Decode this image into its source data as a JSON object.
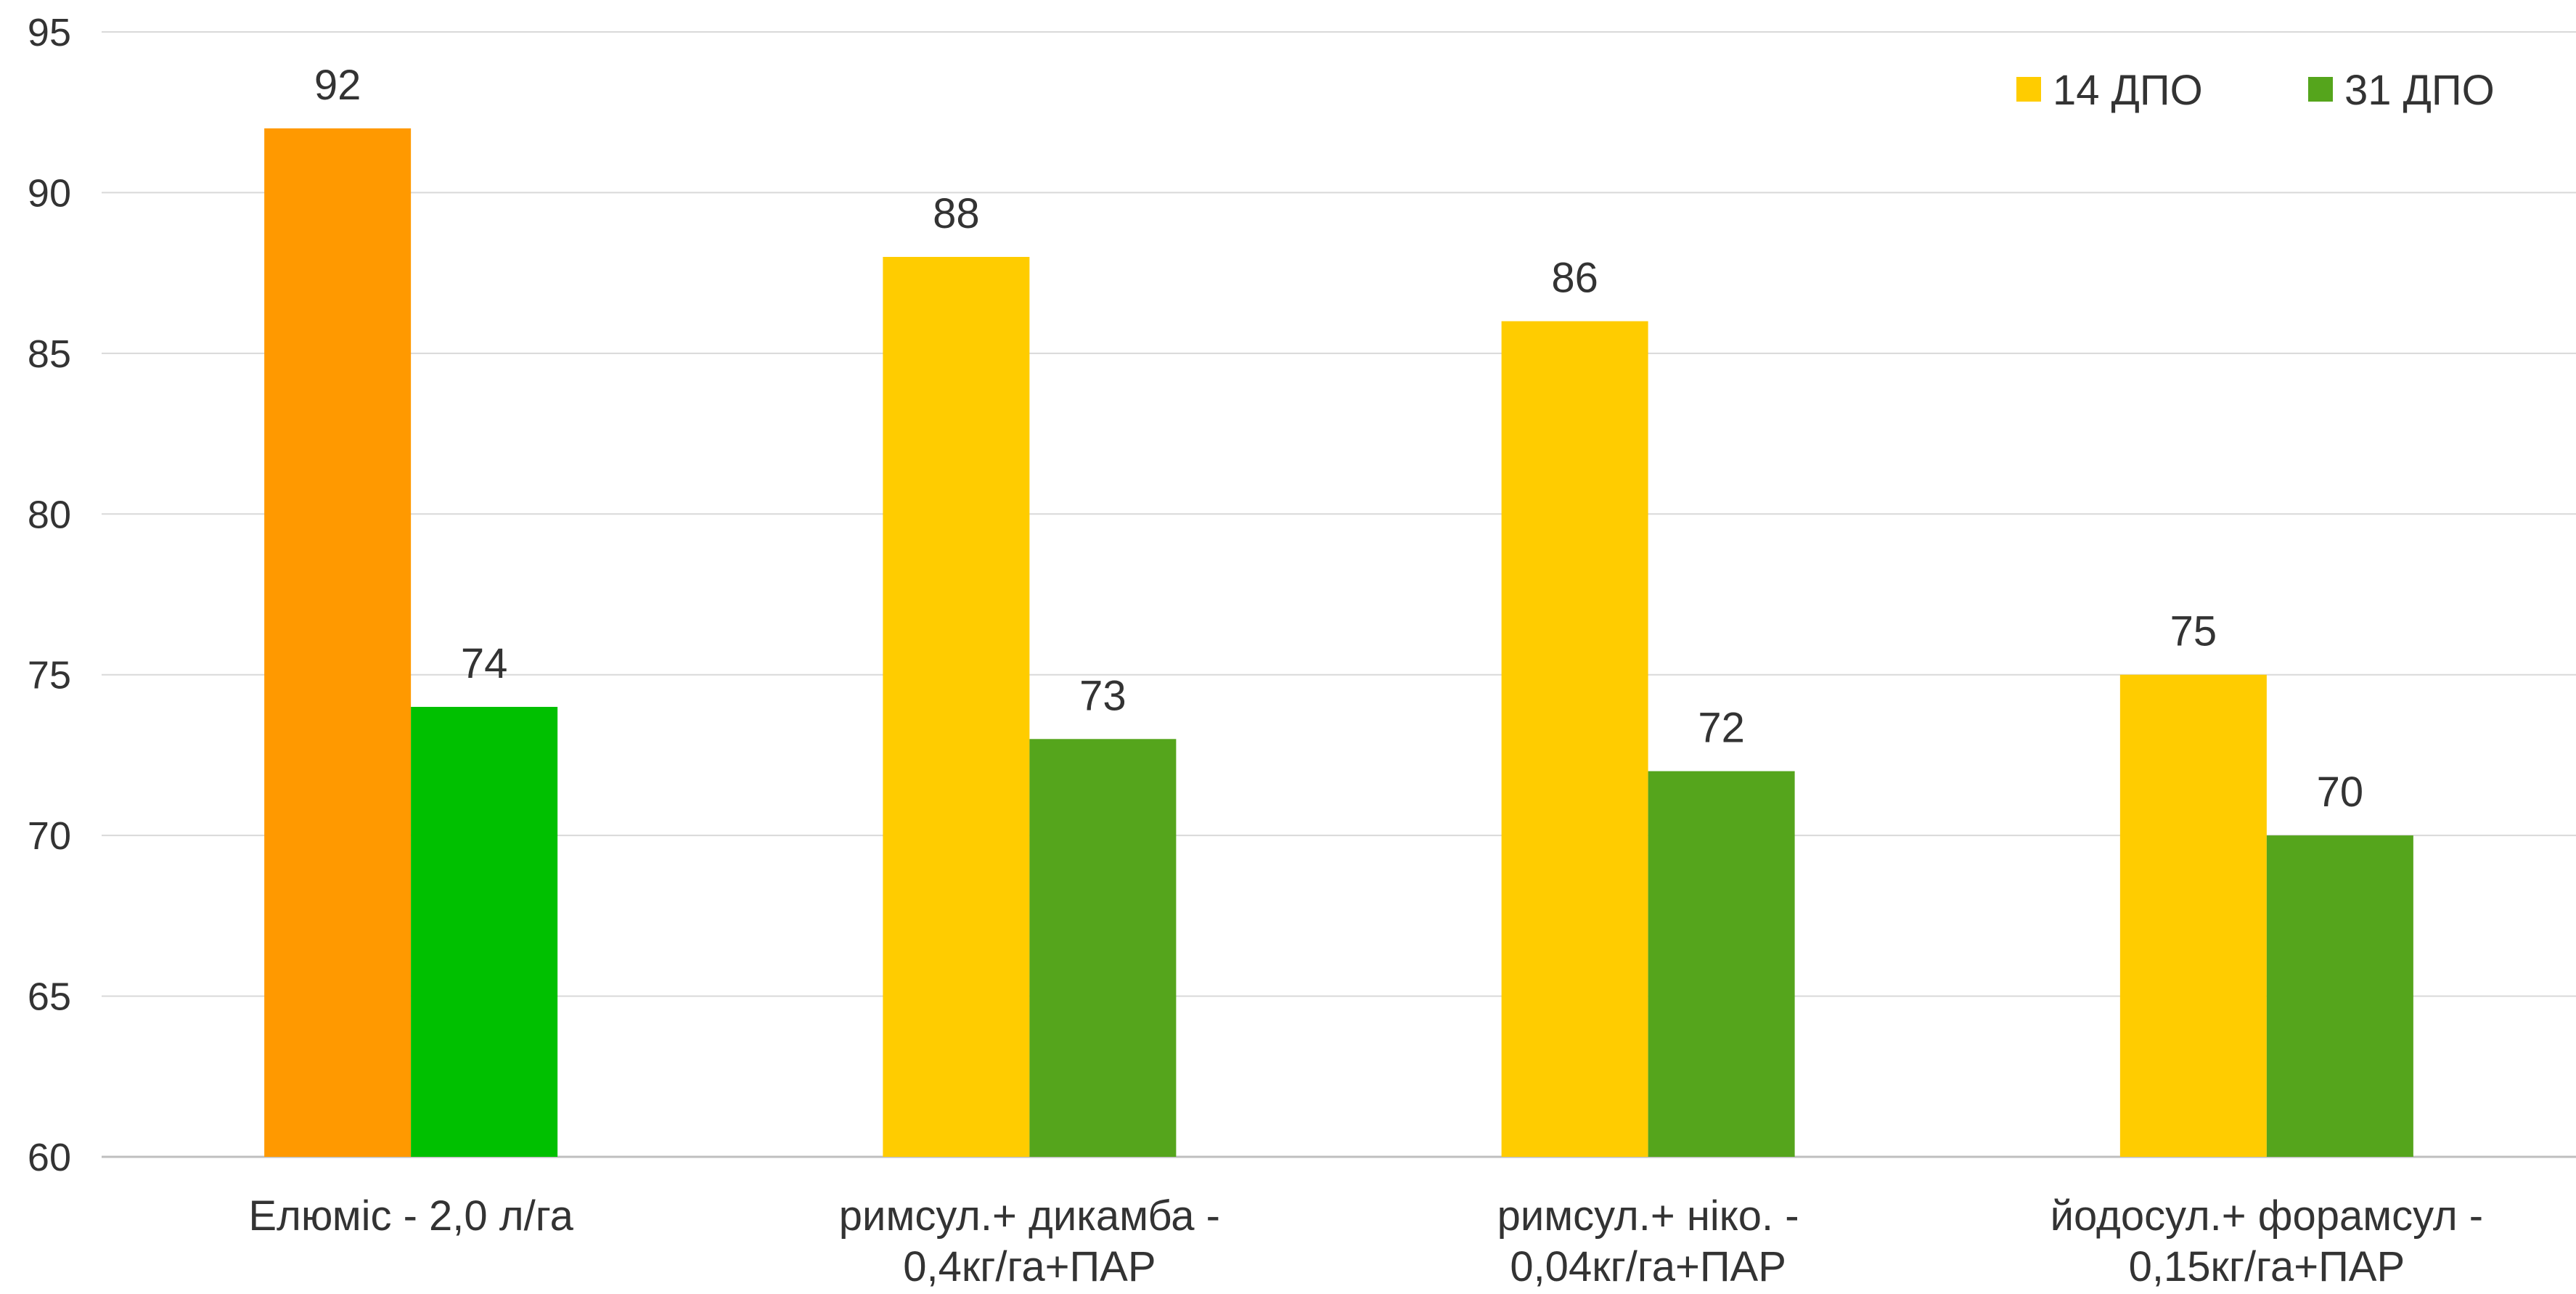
{
  "chart_data": {
    "type": "bar",
    "title": "",
    "xlabel": "",
    "ylabel": "",
    "ylim": [
      60,
      95
    ],
    "yticks": [
      60,
      65,
      70,
      75,
      80,
      85,
      90,
      95
    ],
    "grid": true,
    "legend_position": "top-right",
    "categories": [
      [
        "Елюміс - 2,0 л/га"
      ],
      [
        "римсул.+ дикамба -",
        "0,4кг/га+ПАР"
      ],
      [
        "римсул.+ ніко. -",
        "0,04кг/га+ПАР"
      ],
      [
        "йодосул.+ форамсул -",
        "0,15кг/га+ПАР"
      ]
    ],
    "series": [
      {
        "name": "14 ДПО",
        "color": "#ffcc00",
        "values": [
          92,
          88,
          86,
          75
        ],
        "point_colors": [
          "#ff9900",
          "#ffcc00",
          "#ffcc00",
          "#ffcc00"
        ]
      },
      {
        "name": "31 ДПО",
        "color": "#55a51c",
        "values": [
          74,
          73,
          72,
          70
        ],
        "point_colors": [
          "#00c000",
          "#55a51c",
          "#55a51c",
          "#55a51c"
        ]
      }
    ]
  }
}
